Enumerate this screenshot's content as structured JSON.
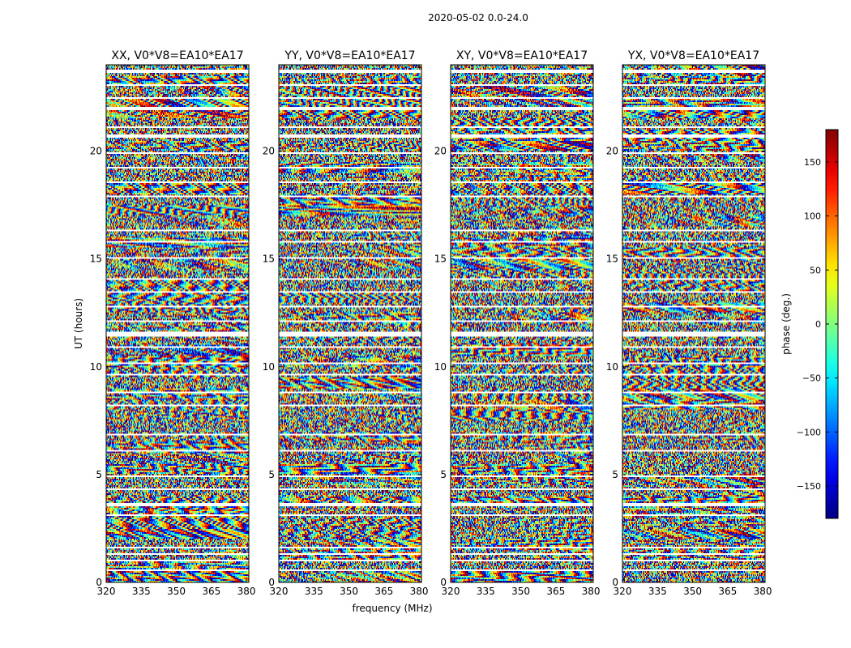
{
  "figure": {
    "suptitle": "2020-05-02 0.0-24.0"
  },
  "chart_data": {
    "type": "heatmap",
    "colormap": "jet",
    "shared_xlabel": "frequency (MHz)",
    "shared_ylabel": "UT (hours)",
    "xlim": [
      320,
      381
    ],
    "ylim": [
      0,
      24
    ],
    "x_ticks": [
      320,
      335,
      350,
      365,
      380
    ],
    "y_ticks": [
      0,
      5,
      10,
      15,
      20
    ],
    "colorbar": {
      "label": "phase (deg.)",
      "range": [
        -180,
        180
      ],
      "ticks": [
        -150,
        -100,
        -50,
        0,
        50,
        100,
        150
      ],
      "tick_labels": [
        "−150",
        "−100",
        "−50",
        "0",
        "50",
        "100",
        "150"
      ]
    },
    "flagged_time_ranges_hours": [
      [
        0.55,
        0.62
      ],
      [
        0.97,
        1.05
      ],
      [
        1.25,
        1.32
      ],
      [
        1.55,
        1.62
      ],
      [
        3.1,
        3.18
      ],
      [
        3.55,
        3.68
      ],
      [
        4.3,
        4.36
      ],
      [
        4.85,
        4.92
      ],
      [
        5.3,
        5.36
      ],
      [
        6.1,
        6.16
      ],
      [
        6.85,
        6.92
      ],
      [
        7.4,
        7.46
      ],
      [
        8.15,
        8.22
      ],
      [
        8.8,
        8.88
      ],
      [
        9.6,
        9.66
      ],
      [
        10.15,
        10.22
      ],
      [
        10.9,
        10.97
      ],
      [
        11.4,
        11.65
      ],
      [
        12.05,
        12.12
      ],
      [
        12.75,
        12.82
      ],
      [
        13.45,
        13.52
      ],
      [
        14.05,
        14.12
      ],
      [
        15.0,
        15.06
      ],
      [
        15.75,
        15.85
      ],
      [
        16.3,
        16.36
      ],
      [
        17.0,
        17.06
      ],
      [
        17.85,
        17.92
      ],
      [
        18.5,
        18.58
      ],
      [
        19.2,
        19.28
      ],
      [
        19.85,
        19.92
      ],
      [
        20.6,
        20.75
      ],
      [
        21.1,
        21.16
      ],
      [
        21.9,
        22.05
      ],
      [
        22.45,
        22.5
      ],
      [
        23.05,
        23.12
      ],
      [
        23.65,
        23.75
      ]
    ],
    "panels": [
      {
        "title": "XX, V0*V8=EA10*EA17",
        "show_xlabel": false,
        "show_ylabel": true,
        "seed": 11
      },
      {
        "title": "YY, V0*V8=EA10*EA17",
        "show_xlabel": true,
        "show_ylabel": false,
        "seed": 23
      },
      {
        "title": "XY, V0*V8=EA10*EA17",
        "show_xlabel": false,
        "show_ylabel": false,
        "seed": 37
      },
      {
        "title": "YX, V0*V8=EA10*EA17",
        "show_xlabel": false,
        "show_ylabel": false,
        "seed": 53
      }
    ]
  }
}
